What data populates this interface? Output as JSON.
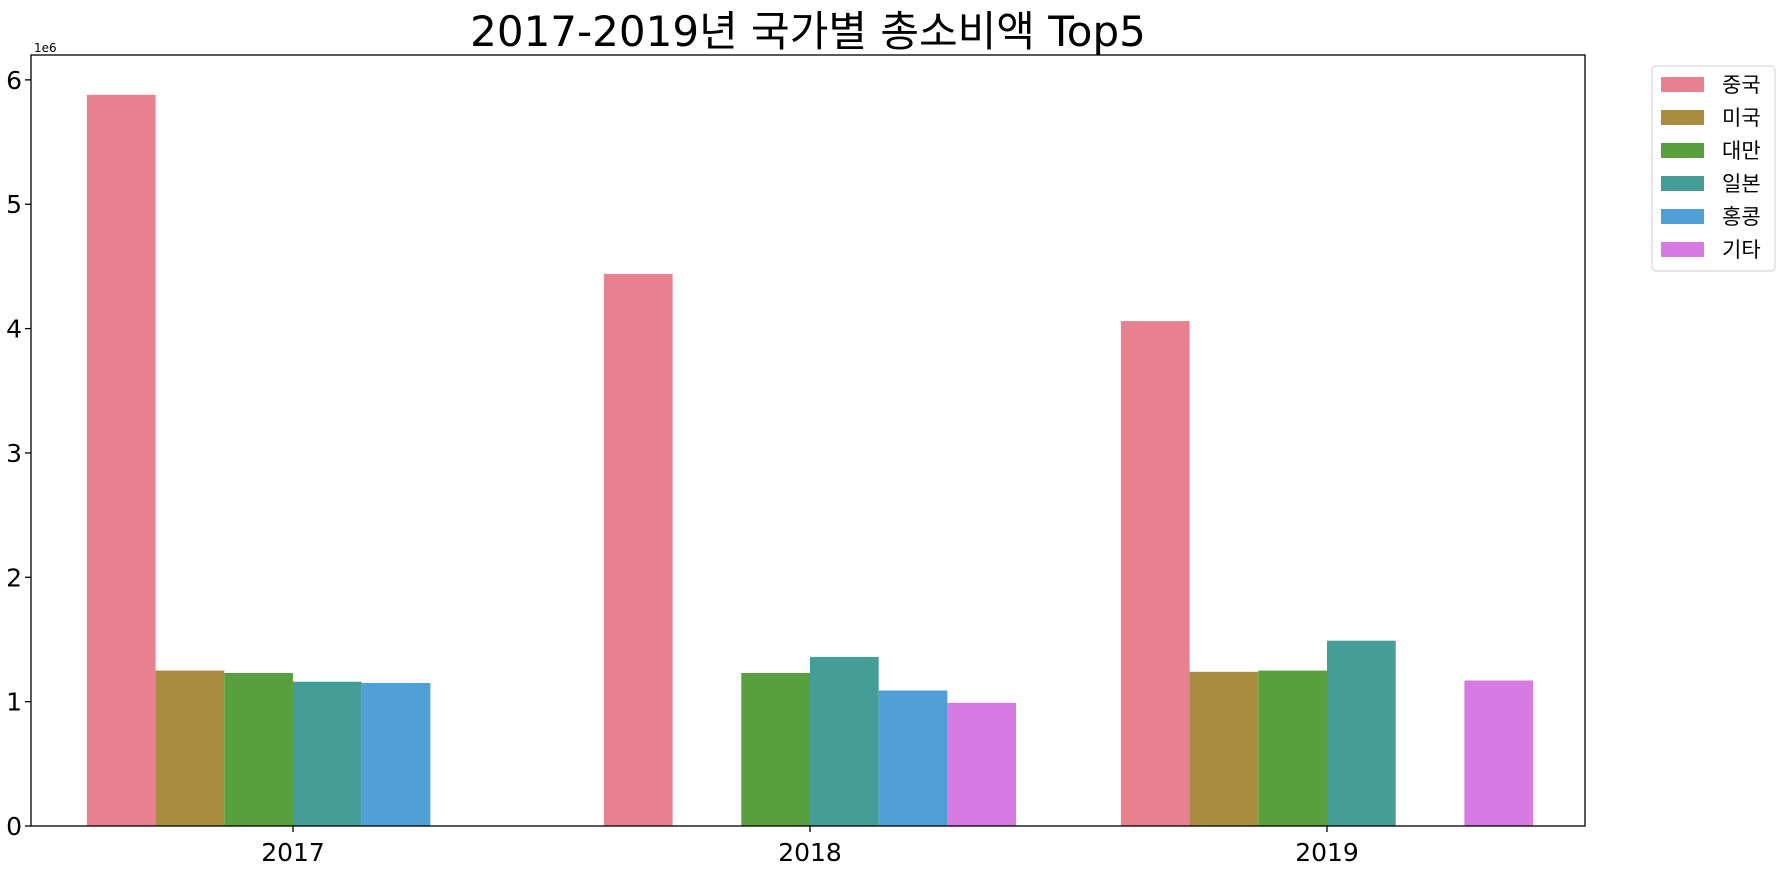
{
  "chart_data": {
    "type": "bar",
    "title": "2017-2019년 국가별 총소비액 Top5",
    "xlabel": "",
    "ylabel": "",
    "y_scale_label": "1e6",
    "ylim": [
      0,
      6200000
    ],
    "yticks": [
      0,
      1000000,
      2000000,
      3000000,
      4000000,
      5000000,
      6000000
    ],
    "ytick_labels": [
      "0",
      "1",
      "2",
      "3",
      "4",
      "5",
      "6"
    ],
    "categories": [
      "2017",
      "2018",
      "2019"
    ],
    "series": [
      {
        "name": "중국",
        "color": "#e7808f",
        "values": [
          5880000,
          4440000,
          4060000
        ]
      },
      {
        "name": "미국",
        "color": "#aa8c40",
        "values": [
          1250000,
          null,
          1240000
        ]
      },
      {
        "name": "대만",
        "color": "#58a03e",
        "values": [
          1230000,
          1230000,
          1250000
        ]
      },
      {
        "name": "일본",
        "color": "#449e97",
        "values": [
          1160000,
          1360000,
          1490000
        ]
      },
      {
        "name": "홍콩",
        "color": "#519fd7",
        "values": [
          1150000,
          1090000,
          null
        ]
      },
      {
        "name": "기타",
        "color": "#d87ae3",
        "values": [
          null,
          990000,
          1170000
        ]
      }
    ],
    "grid": false,
    "legend_position": "outside-top-right"
  }
}
